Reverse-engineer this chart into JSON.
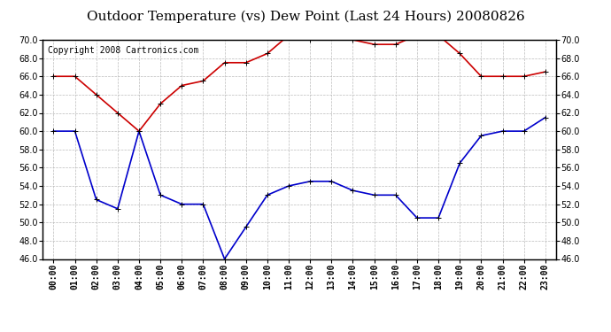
{
  "title": "Outdoor Temperature (vs) Dew Point (Last 24 Hours) 20080826",
  "copyright": "Copyright 2008 Cartronics.com",
  "hours": [
    "00:00",
    "01:00",
    "02:00",
    "03:00",
    "04:00",
    "05:00",
    "06:00",
    "07:00",
    "08:00",
    "09:00",
    "10:00",
    "11:00",
    "12:00",
    "13:00",
    "14:00",
    "15:00",
    "16:00",
    "17:00",
    "18:00",
    "19:00",
    "20:00",
    "21:00",
    "22:00",
    "23:00"
  ],
  "temp": [
    60.0,
    60.0,
    52.5,
    51.5,
    60.0,
    53.0,
    52.0,
    52.0,
    46.0,
    49.5,
    53.0,
    54.0,
    54.5,
    54.5,
    53.5,
    53.0,
    53.0,
    50.5,
    50.5,
    56.5,
    59.5,
    60.0,
    60.0,
    61.5
  ],
  "dewpoint": [
    66.0,
    66.0,
    64.0,
    62.0,
    60.0,
    63.0,
    65.0,
    65.5,
    67.5,
    67.5,
    68.5,
    70.5,
    70.0,
    70.5,
    70.0,
    69.5,
    69.5,
    70.5,
    70.5,
    68.5,
    66.0,
    66.0,
    66.0,
    66.5
  ],
  "temp_color": "#0000cc",
  "dewpoint_color": "#cc0000",
  "bg_color": "#ffffff",
  "grid_color": "#bbbbbb",
  "ylim": [
    46.0,
    70.0
  ],
  "yticks": [
    46.0,
    48.0,
    50.0,
    52.0,
    54.0,
    56.0,
    58.0,
    60.0,
    62.0,
    64.0,
    66.0,
    68.0,
    70.0
  ],
  "title_fontsize": 11,
  "copyright_fontsize": 7,
  "tick_fontsize": 7,
  "marker": "+",
  "markersize": 5,
  "linewidth": 1.2
}
